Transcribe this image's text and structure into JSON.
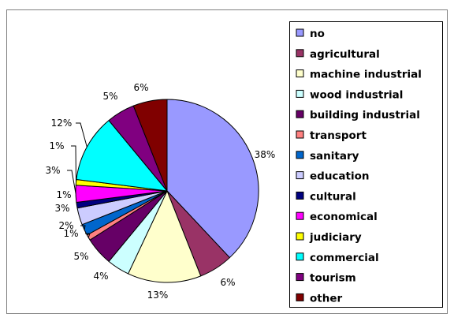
{
  "chart_data": {
    "type": "pie",
    "categories": [
      "no",
      "agricultural",
      "machine industrial",
      "wood industrial",
      "building industrial",
      "transport",
      "sanitary",
      "education",
      "cultural",
      "economical",
      "judiciary",
      "commercial",
      "tourism",
      "other"
    ],
    "values": [
      38,
      6,
      13,
      4,
      5,
      1,
      2,
      3,
      1,
      3,
      1,
      12,
      5,
      6
    ],
    "value_labels": [
      "38%",
      "6%",
      "13%",
      "4%",
      "5%",
      "1%",
      "2%",
      "3%",
      "1%",
      "3%",
      "1%",
      "12%",
      "5%",
      "6%"
    ],
    "colors": [
      "#9999ff",
      "#993366",
      "#ffffcc",
      "#ccffff",
      "#660066",
      "#ff8080",
      "#0066cc",
      "#ccccff",
      "#000080",
      "#ff00ff",
      "#ffff00",
      "#00ffff",
      "#800080",
      "#800000"
    ],
    "legend": {
      "position": "right"
    },
    "title": ""
  }
}
